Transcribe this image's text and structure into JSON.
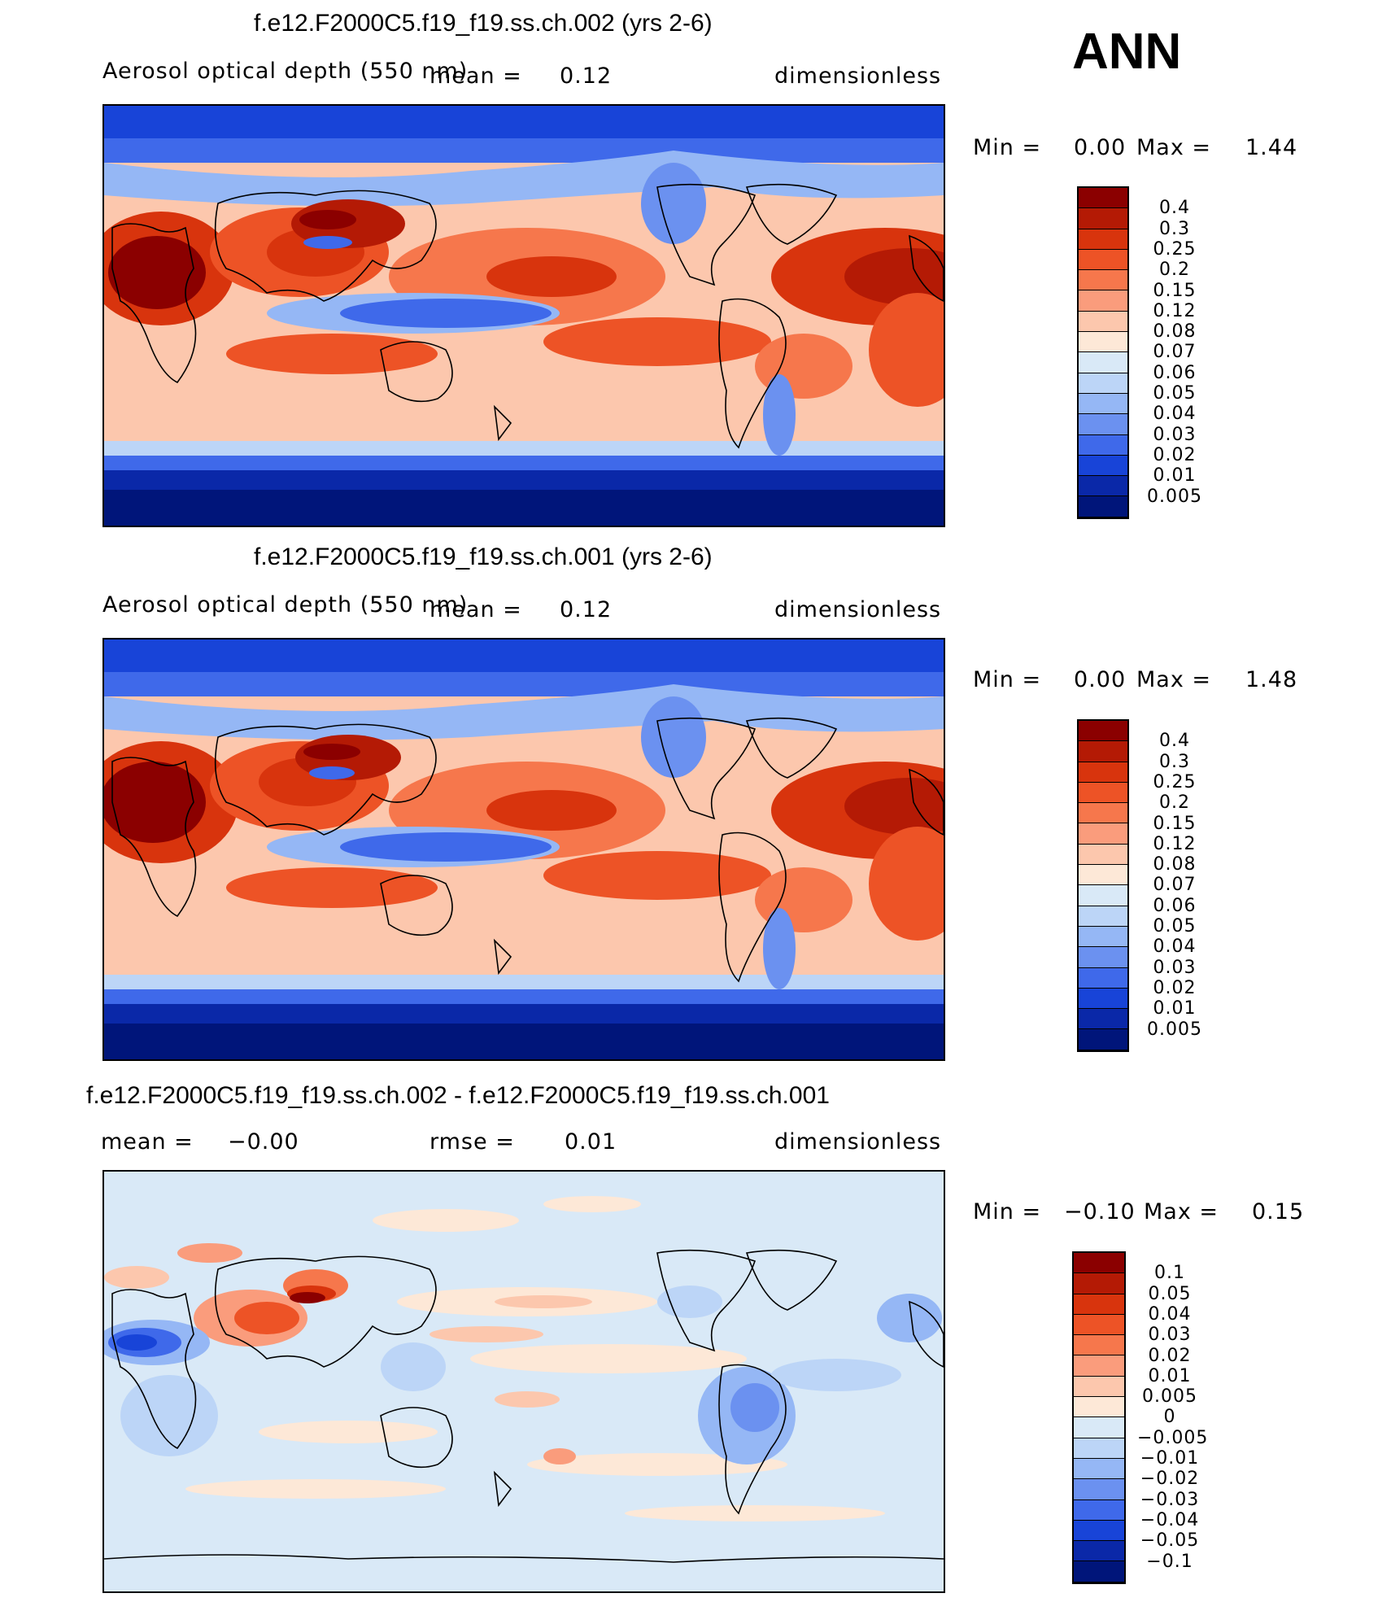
{
  "season": "ANN",
  "panels": [
    {
      "title": "f.e12.F2000C5.f19_f19.ss.ch.002 (yrs 2-6)",
      "variable": "Aerosol optical depth (550 nm)",
      "stat_label": "mean =",
      "stat_value": "0.12",
      "units": "dimensionless",
      "min_label": "Min =",
      "min_value": "0.00",
      "max_label": "Max =",
      "max_value": "1.44",
      "levels": [
        "0.4",
        "0.3",
        "0.25",
        "0.2",
        "0.15",
        "0.12",
        "0.08",
        "0.07",
        "0.06",
        "0.05",
        "0.04",
        "0.03",
        "0.02",
        "0.01",
        "0.005"
      ],
      "colors": [
        "#8b0000",
        "#b41a05",
        "#d8340d",
        "#ed5326",
        "#f6774c",
        "#fa9c7c",
        "#fcc7ad",
        "#fde8d7",
        "#d9e9f7",
        "#bcd5f7",
        "#95b7f5",
        "#6b91f0",
        "#3f69ea",
        "#1844d8",
        "#0a28a8",
        "#00157a"
      ]
    },
    {
      "title": "f.e12.F2000C5.f19_f19.ss.ch.001 (yrs 2-6)",
      "variable": "Aerosol optical depth (550 nm)",
      "stat_label": "mean =",
      "stat_value": "0.12",
      "units": "dimensionless",
      "min_label": "Min =",
      "min_value": "0.00",
      "max_label": "Max =",
      "max_value": "1.48",
      "levels": [
        "0.4",
        "0.3",
        "0.25",
        "0.2",
        "0.15",
        "0.12",
        "0.08",
        "0.07",
        "0.06",
        "0.05",
        "0.04",
        "0.03",
        "0.02",
        "0.01",
        "0.005"
      ],
      "colors": [
        "#8b0000",
        "#b41a05",
        "#d8340d",
        "#ed5326",
        "#f6774c",
        "#fa9c7c",
        "#fcc7ad",
        "#fde8d7",
        "#d9e9f7",
        "#bcd5f7",
        "#95b7f5",
        "#6b91f0",
        "#3f69ea",
        "#1844d8",
        "#0a28a8",
        "#00157a"
      ]
    },
    {
      "title": "f.e12.F2000C5.f19_f19.ss.ch.002 - f.e12.F2000C5.f19_f19.ss.ch.001",
      "mean_label": "mean =",
      "mean_value": "−0.00",
      "stat_label": "rmse =",
      "stat_value": "0.01",
      "units": "dimensionless",
      "min_label": "Min =",
      "min_value": "−0.10",
      "max_label": "Max =",
      "max_value": "0.15",
      "levels": [
        "0.1",
        "0.05",
        "0.04",
        "0.03",
        "0.02",
        "0.01",
        "0.005",
        "0",
        "−0.005",
        "−0.01",
        "−0.02",
        "−0.03",
        "−0.04",
        "−0.05",
        "−0.1"
      ],
      "colors": [
        "#8b0000",
        "#b41a05",
        "#d8340d",
        "#ed5326",
        "#f6774c",
        "#fa9c7c",
        "#fcc7ad",
        "#fde8d7",
        "#d9e9f7",
        "#bcd5f7",
        "#95b7f5",
        "#6b91f0",
        "#3f69ea",
        "#1844d8",
        "#0a28a8",
        "#00157a"
      ]
    }
  ]
}
